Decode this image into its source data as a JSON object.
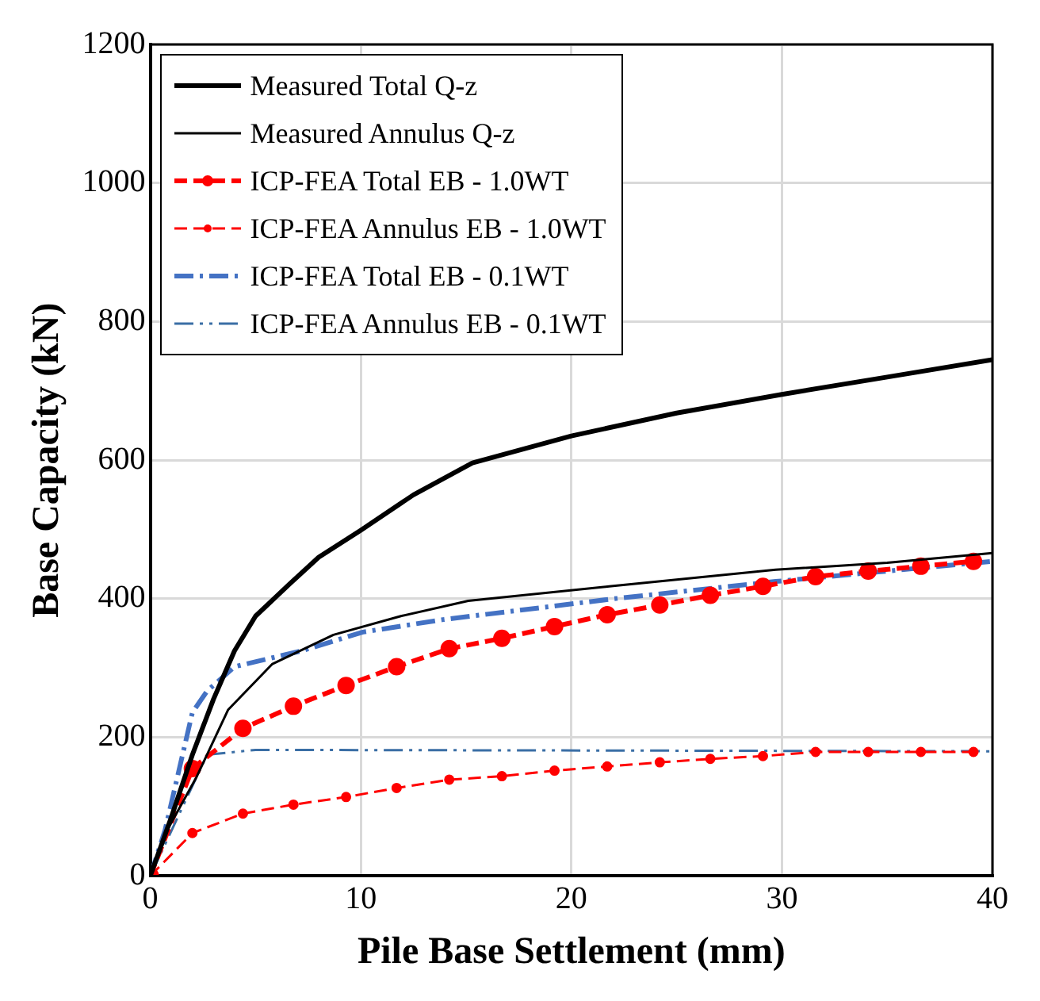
{
  "chart_data": {
    "type": "line",
    "xlabel": "Pile Base Settlement (mm)",
    "ylabel": "Base Capacity (kN)",
    "xlim": [
      0,
      40
    ],
    "xticks": [
      0,
      10,
      20,
      30,
      40
    ],
    "ylim": [
      0,
      1200
    ],
    "yticks": [
      0,
      200,
      400,
      600,
      800,
      1000,
      1200
    ],
    "grid": true,
    "legend": "top left",
    "series": [
      {
        "name": "Measured Total Q-z",
        "color": "#000000",
        "line_style": "solid",
        "marker": "none",
        "x": [
          0,
          1,
          2,
          3,
          4,
          5,
          6.6,
          8,
          10,
          12.5,
          15.3,
          20,
          25,
          30,
          35,
          40
        ],
        "values": [
          0,
          85,
          175,
          255,
          325,
          375,
          421,
          460,
          499,
          550,
          596,
          635,
          668,
          695,
          720,
          745
        ]
      },
      {
        "name": "Measured Annulus Q-z",
        "color": "#000000",
        "line_style": "solid",
        "marker": "none",
        "x": [
          0,
          0.8,
          2.2,
          3.7,
          5.8,
          8.7,
          11.9,
          15.1,
          21.8,
          29.7,
          35,
          40
        ],
        "values": [
          0,
          66,
          143,
          240,
          306,
          348,
          375,
          397,
          418,
          442,
          452,
          466
        ]
      },
      {
        "name": "ICP-FEA Total EB - 1.0WT",
        "color": "#ff0000",
        "line_style": "dashed",
        "marker": "circle",
        "x": [
          0,
          2,
          4.4,
          6.8,
          9.3,
          11.7,
          14.2,
          16.7,
          19.2,
          21.7,
          24.2,
          26.6,
          29.1,
          31.6,
          34.1,
          36.6,
          39.1
        ],
        "values": [
          0,
          155,
          213,
          245,
          275,
          302,
          328,
          343,
          360,
          377,
          391,
          405,
          418,
          432,
          440,
          447,
          454
        ]
      },
      {
        "name": "ICP-FEA Annulus EB - 1.0WT",
        "color": "#ff0000",
        "line_style": "dashed",
        "marker": "circle",
        "x": [
          0,
          2,
          4.4,
          6.8,
          9.3,
          11.7,
          14.2,
          16.7,
          19.2,
          21.7,
          24.2,
          26.6,
          29.1,
          31.6,
          34.1,
          36.6,
          39.1
        ],
        "values": [
          0,
          62,
          90,
          103,
          114,
          127,
          139,
          144,
          152,
          158,
          164,
          169,
          173,
          179,
          179,
          179,
          179
        ]
      },
      {
        "name": "ICP-FEA Total EB - 0.1WT",
        "color": "#4472c4",
        "line_style": "dashdot",
        "marker": "none",
        "x": [
          0,
          0.7,
          2,
          2.7,
          4,
          7.2,
          10.1,
          13.9,
          22,
          29.7,
          35,
          40
        ],
        "values": [
          0,
          66,
          236,
          267,
          302,
          325,
          352,
          370,
          400,
          425,
          440,
          454
        ]
      },
      {
        "name": "ICP-FEA Annulus EB - 0.1WT",
        "color": "#3a6ea5",
        "line_style": "dashdotdot",
        "marker": "none",
        "x": [
          0,
          1,
          2,
          2.7,
          5,
          40
        ],
        "values": [
          0,
          65,
          130,
          175,
          182,
          180
        ]
      }
    ]
  }
}
